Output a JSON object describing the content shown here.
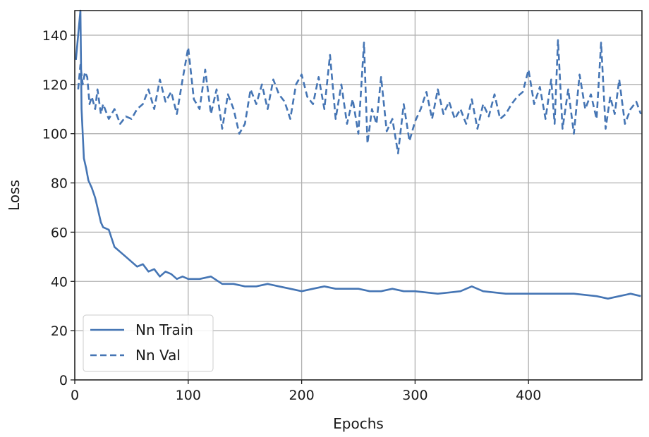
{
  "chart_data": {
    "type": "line",
    "title": "",
    "xlabel": "Epochs",
    "ylabel": "Loss",
    "xlim": [
      0,
      500
    ],
    "ylim": [
      0,
      150
    ],
    "x_ticks": [
      0,
      100,
      200,
      300,
      400
    ],
    "y_ticks": [
      0,
      20,
      40,
      60,
      80,
      100,
      120,
      140
    ],
    "grid": true,
    "legend_position": "lower-left",
    "series": [
      {
        "name": "Nn Train",
        "style": "solid",
        "color": "#4575b4",
        "x": [
          1,
          3,
          5,
          6,
          8,
          10,
          12,
          15,
          18,
          20,
          23,
          25,
          30,
          35,
          40,
          45,
          50,
          55,
          60,
          65,
          70,
          75,
          80,
          85,
          90,
          95,
          100,
          110,
          120,
          130,
          140,
          150,
          160,
          170,
          180,
          190,
          200,
          210,
          220,
          230,
          240,
          250,
          260,
          270,
          280,
          290,
          300,
          320,
          340,
          350,
          360,
          380,
          400,
          420,
          440,
          460,
          470,
          480,
          490,
          499
        ],
        "y": [
          130,
          140,
          150,
          110,
          90,
          86,
          81,
          78,
          74,
          70,
          64,
          62,
          61,
          54,
          52,
          50,
          48,
          46,
          47,
          44,
          45,
          42,
          44,
          43,
          41,
          42,
          41,
          41,
          42,
          39,
          39,
          38,
          38,
          39,
          38,
          37,
          36,
          37,
          38,
          37,
          37,
          37,
          36,
          36,
          37,
          36,
          36,
          35,
          36,
          38,
          36,
          35,
          35,
          35,
          35,
          34,
          33,
          34,
          35,
          34
        ]
      },
      {
        "name": "Nn Val",
        "style": "dashed",
        "color": "#4575b4",
        "x": [
          3,
          5,
          7,
          9,
          11,
          13,
          15,
          18,
          20,
          23,
          25,
          30,
          35,
          40,
          45,
          50,
          55,
          60,
          65,
          70,
          75,
          80,
          85,
          90,
          95,
          100,
          105,
          110,
          115,
          120,
          125,
          130,
          135,
          140,
          145,
          150,
          155,
          160,
          165,
          170,
          175,
          180,
          185,
          190,
          195,
          200,
          205,
          210,
          215,
          220,
          225,
          230,
          235,
          240,
          245,
          250,
          255,
          258,
          262,
          266,
          270,
          275,
          280,
          285,
          290,
          295,
          300,
          305,
          310,
          315,
          320,
          325,
          330,
          335,
          340,
          345,
          350,
          355,
          360,
          365,
          370,
          375,
          380,
          385,
          390,
          395,
          400,
          405,
          410,
          415,
          420,
          423,
          426,
          430,
          435,
          440,
          445,
          450,
          455,
          460,
          464,
          468,
          472,
          476,
          480,
          485,
          490,
          495,
          499
        ],
        "y": [
          118,
          128,
          120,
          125,
          123,
          112,
          115,
          110,
          118,
          108,
          112,
          106,
          110,
          104,
          107,
          106,
          110,
          112,
          118,
          110,
          122,
          113,
          117,
          108,
          122,
          135,
          114,
          110,
          126,
          108,
          118,
          102,
          116,
          110,
          100,
          104,
          118,
          112,
          120,
          110,
          122,
          116,
          113,
          106,
          120,
          124,
          115,
          112,
          123,
          110,
          132,
          106,
          120,
          104,
          114,
          100,
          137,
          96,
          110,
          104,
          123,
          101,
          106,
          92,
          112,
          97,
          105,
          110,
          117,
          106,
          118,
          108,
          113,
          106,
          110,
          104,
          114,
          102,
          112,
          107,
          116,
          106,
          108,
          112,
          115,
          117,
          126,
          112,
          119,
          106,
          122,
          104,
          138,
          102,
          118,
          100,
          124,
          110,
          116,
          106,
          137,
          102,
          115,
          108,
          122,
          104,
          110,
          113,
          108
        ]
      }
    ]
  }
}
